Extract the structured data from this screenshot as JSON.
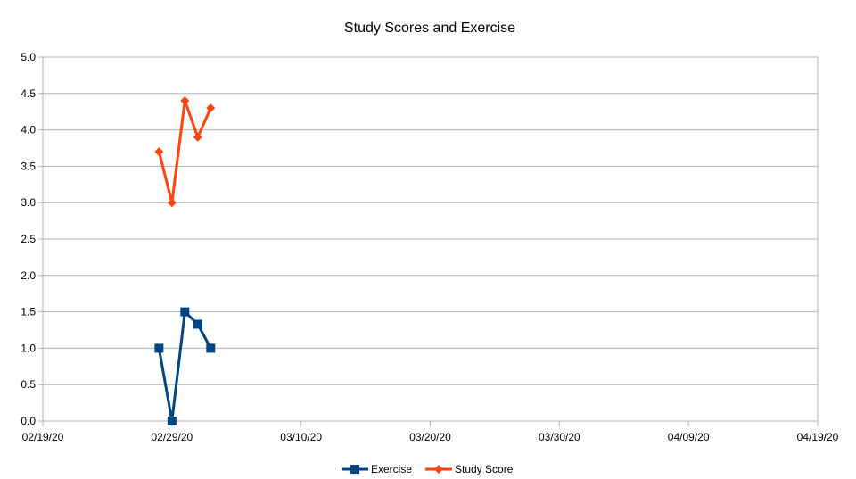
{
  "chart_data": {
    "type": "line",
    "title": "Study Scores and Exercise",
    "xlabel": "",
    "ylabel": "",
    "x_axis": {
      "type": "date",
      "min": "2020-02-19",
      "max": "2020-04-19",
      "ticks": [
        {
          "value": "2020-02-19",
          "label": "02/19/20"
        },
        {
          "value": "2020-02-29",
          "label": "02/29/20"
        },
        {
          "value": "2020-03-10",
          "label": "03/10/20"
        },
        {
          "value": "2020-03-20",
          "label": "03/20/20"
        },
        {
          "value": "2020-03-30",
          "label": "03/30/20"
        },
        {
          "value": "2020-04-09",
          "label": "04/09/20"
        },
        {
          "value": "2020-04-19",
          "label": "04/19/20"
        }
      ]
    },
    "y_axis": {
      "min": 0,
      "max": 5,
      "ticks": [
        {
          "value": 0,
          "label": "0.0"
        },
        {
          "value": 0.5,
          "label": "0.5"
        },
        {
          "value": 1,
          "label": "1.0"
        },
        {
          "value": 1.5,
          "label": "1.5"
        },
        {
          "value": 2,
          "label": "2.0"
        },
        {
          "value": 2.5,
          "label": "2.5"
        },
        {
          "value": 3,
          "label": "3.0"
        },
        {
          "value": 3.5,
          "label": "3.5"
        },
        {
          "value": 4,
          "label": "4.0"
        },
        {
          "value": 4.5,
          "label": "4.5"
        },
        {
          "value": 5,
          "label": "5.0"
        }
      ]
    },
    "grid": true,
    "legend": "bottom",
    "series": [
      {
        "name": "Exercise",
        "color": "#004586",
        "marker": "square",
        "points": [
          {
            "x": "2020-02-28",
            "y": 1
          },
          {
            "x": "2020-02-29",
            "y": 0
          },
          {
            "x": "2020-03-01",
            "y": 1.5
          },
          {
            "x": "2020-03-02",
            "y": 1.33
          },
          {
            "x": "2020-03-03",
            "y": 1
          }
        ]
      },
      {
        "name": "Study Score",
        "color": "#ff420e",
        "marker": "diamond",
        "points": [
          {
            "x": "2020-02-28",
            "y": 3.7
          },
          {
            "x": "2020-02-29",
            "y": 3
          },
          {
            "x": "2020-03-01",
            "y": 4.4
          },
          {
            "x": "2020-03-02",
            "y": 3.9
          },
          {
            "x": "2020-03-03",
            "y": 4.3
          }
        ]
      }
    ]
  }
}
